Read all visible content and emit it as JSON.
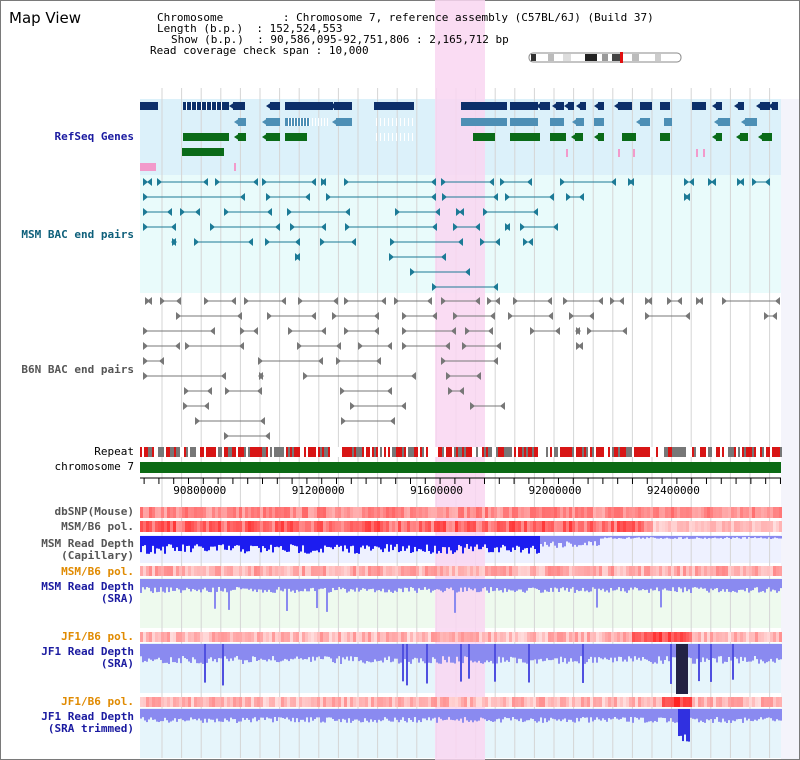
{
  "title": "Map View",
  "info": {
    "chromosome_key": "Chromosome",
    "chromosome_val": "Chromosome 7, reference assembly (C57BL/6J) (Build 37)",
    "length_key": "Length (b.p.)",
    "length_val": "152,524,553",
    "show_key": "Show (b.p.)",
    "show_val": "90,586,095-92,751,806 : 2,165,712 bp",
    "coverage_key": "Read coverage check span",
    "coverage_val": "10,000"
  },
  "tracks": {
    "refseq": "RefSeq Genes",
    "msm_bac": "MSM BAC end pairs",
    "b6n_bac": "B6N BAC end pairs",
    "repeat": "Repeat",
    "chromosome": "chromosome 7",
    "dbsnp": "dbSNP(Mouse)",
    "msm_pol": "MSM/B6 pol.",
    "msm_depth_cap_1": "MSM Read Depth",
    "msm_depth_cap_2": "(Capillary)",
    "msm_pol_2": "MSM/B6 pol.",
    "msm_depth_sra_1": "MSM Read Depth",
    "msm_depth_sra_2": "(SRA)",
    "jf1_pol": "JF1/B6 pol.",
    "jf1_depth_sra_1": "JF1 Read Depth",
    "jf1_depth_sra_2": "(SRA)",
    "jf1_pol_2": "JF1/B6 pol.",
    "jf1_depth_trim_1": "JF1 Read Depth",
    "jf1_depth_trim_2": "(SRA trimmed)"
  },
  "axis": {
    "ticks": [
      "90800000",
      "91200000",
      "91600000",
      "92000000",
      "92400000"
    ],
    "tick_values": [
      90800000,
      91200000,
      91600000,
      92000000,
      92400000
    ],
    "range": [
      90586095,
      92751806
    ]
  },
  "colors": {
    "refseq_bg": "#dcf1fa",
    "bac_bg": "#e9fbfb",
    "highlight": "#f9d6f1",
    "gene_dark": "#0c2f6a",
    "gene_mid": "#4d8fb5",
    "gene_green": "#0a6b18",
    "gene_pink": "#f29acb",
    "msm_bac": "#1c7a96",
    "b6n_bac": "#777777",
    "chromosome": "#0b6a14",
    "depth_dark": "#1c1cf0",
    "depth_light": "#8a8af0"
  }
}
